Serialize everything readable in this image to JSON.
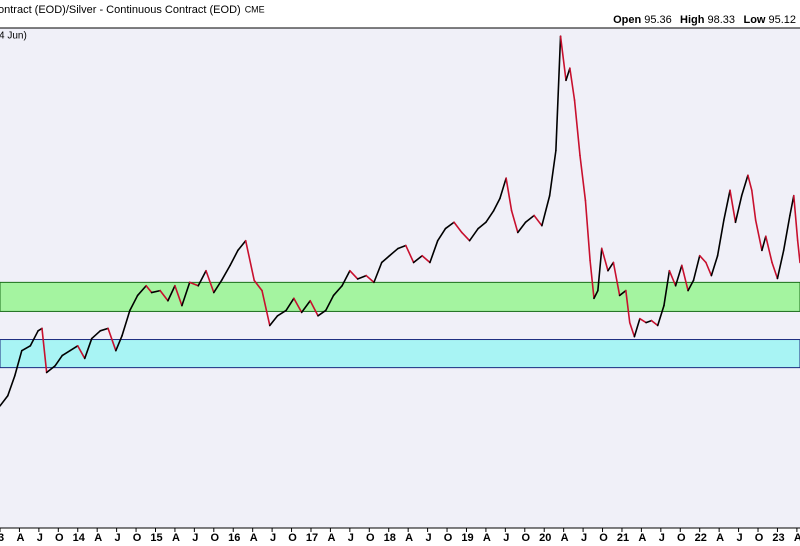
{
  "chart_data": {
    "type": "line",
    "title": "ontract (EOD)/Silver - Continuous Contract (EOD)",
    "source": "CME",
    "annotation": "4 Jun)",
    "quote": [
      {
        "label": "Open",
        "value": 95.36
      },
      {
        "label": "High",
        "value": 98.33
      },
      {
        "label": "Low",
        "value": 95.12
      }
    ],
    "up_color": "#000000",
    "down_color": "#c8102e",
    "xlim": [
      2013.0,
      2023.29
    ],
    "ylim": [
      23.5,
      126.7
    ],
    "xticks": [
      {
        "value": 2013,
        "label": "3"
      },
      {
        "value": 2013.25,
        "label": "A"
      },
      {
        "value": 2013.5,
        "label": "J"
      },
      {
        "value": 2013.75,
        "label": "O"
      },
      {
        "value": 2014,
        "label": "14"
      },
      {
        "value": 2014.25,
        "label": "A"
      },
      {
        "value": 2014.5,
        "label": "J"
      },
      {
        "value": 2014.75,
        "label": "O"
      },
      {
        "value": 2015,
        "label": "15"
      },
      {
        "value": 2015.25,
        "label": "A"
      },
      {
        "value": 2015.5,
        "label": "J"
      },
      {
        "value": 2015.75,
        "label": "O"
      },
      {
        "value": 2016,
        "label": "16"
      },
      {
        "value": 2016.25,
        "label": "A"
      },
      {
        "value": 2016.5,
        "label": "J"
      },
      {
        "value": 2016.75,
        "label": "O"
      },
      {
        "value": 2017,
        "label": "17"
      },
      {
        "value": 2017.25,
        "label": "A"
      },
      {
        "value": 2017.5,
        "label": "J"
      },
      {
        "value": 2017.75,
        "label": "O"
      },
      {
        "value": 2018,
        "label": "18"
      },
      {
        "value": 2018.25,
        "label": "A"
      },
      {
        "value": 2018.5,
        "label": "J"
      },
      {
        "value": 2018.75,
        "label": "O"
      },
      {
        "value": 2019,
        "label": "19"
      },
      {
        "value": 2019.25,
        "label": "A"
      },
      {
        "value": 2019.5,
        "label": "J"
      },
      {
        "value": 2019.75,
        "label": "O"
      },
      {
        "value": 2020,
        "label": "20"
      },
      {
        "value": 2020.25,
        "label": "A"
      },
      {
        "value": 2020.5,
        "label": "J"
      },
      {
        "value": 2020.75,
        "label": "O"
      },
      {
        "value": 2021,
        "label": "21"
      },
      {
        "value": 2021.25,
        "label": "A"
      },
      {
        "value": 2021.5,
        "label": "J"
      },
      {
        "value": 2021.75,
        "label": "O"
      },
      {
        "value": 2022,
        "label": "22"
      },
      {
        "value": 2022.25,
        "label": "A"
      },
      {
        "value": 2022.5,
        "label": "J"
      },
      {
        "value": 2022.75,
        "label": "O"
      },
      {
        "value": 2023,
        "label": "23"
      },
      {
        "value": 2023.25,
        "label": "A"
      }
    ],
    "bands": [
      {
        "low": 68.2,
        "high": 74.2,
        "color": "#a4f4a0",
        "edge": "#1a6e1a"
      },
      {
        "low": 56.6,
        "high": 62.4,
        "color": "#a8f4f4",
        "edge": "#1a2a7e"
      }
    ],
    "series": [
      {
        "x": [
          2013.0,
          2013.1,
          2013.19,
          2013.28,
          2013.39,
          2013.49,
          2013.54,
          2013.6,
          2013.71,
          2013.8,
          2013.9,
          2014.0,
          2014.09,
          2014.18,
          2014.29,
          2014.39,
          2014.49,
          2014.57,
          2014.67,
          2014.77,
          2014.88,
          2014.95,
          2015.06,
          2015.16,
          2015.25,
          2015.34,
          2015.44,
          2015.55,
          2015.65,
          2015.75,
          2015.85,
          2015.96,
          2016.06,
          2016.16,
          2016.27,
          2016.37,
          2016.47,
          2016.57,
          2016.68,
          2016.78,
          2016.88,
          2016.99,
          2017.09,
          2017.19,
          2017.29,
          2017.4,
          2017.5,
          2017.6,
          2017.71,
          2017.81,
          2017.91,
          2018.01,
          2018.12,
          2018.22,
          2018.32,
          2018.43,
          2018.53,
          2018.63,
          2018.73,
          2018.84,
          2018.94,
          2019.04,
          2019.15,
          2019.25,
          2019.35,
          2019.43,
          2019.51,
          2019.58,
          2019.66,
          2019.76,
          2019.87,
          2019.97,
          2020.07,
          2020.15,
          2020.21,
          2020.28,
          2020.33,
          2020.39,
          2020.46,
          2020.53,
          2020.59,
          2020.64,
          2020.69,
          2020.74,
          2020.82,
          2020.89,
          2020.97,
          2021.05,
          2021.1,
          2021.16,
          2021.23,
          2021.31,
          2021.38,
          2021.46,
          2021.54,
          2021.61,
          2021.69,
          2021.77,
          2021.85,
          2021.92,
          2022.0,
          2022.08,
          2022.15,
          2022.23,
          2022.31,
          2022.39,
          2022.46,
          2022.54,
          2022.62,
          2022.67,
          2022.72,
          2022.8,
          2022.85,
          2022.93,
          2023.0,
          2023.08,
          2023.16,
          2023.21,
          2023.26,
          2023.29
        ],
        "values": [
          48.7,
          50.8,
          54.9,
          60.1,
          61.1,
          64.2,
          64.7,
          55.6,
          57.0,
          59.1,
          60.1,
          61.1,
          58.5,
          62.6,
          64.2,
          64.7,
          60.1,
          63.2,
          68.4,
          71.5,
          73.5,
          72.1,
          72.5,
          70.4,
          73.5,
          69.4,
          74.2,
          73.5,
          76.6,
          72.1,
          74.6,
          77.7,
          80.8,
          82.8,
          74.6,
          72.5,
          65.3,
          67.3,
          68.4,
          70.9,
          68.0,
          70.4,
          67.3,
          68.4,
          71.5,
          73.5,
          76.6,
          74.9,
          75.6,
          74.2,
          78.3,
          79.7,
          81.2,
          81.8,
          78.3,
          79.7,
          78.3,
          82.8,
          85.3,
          86.6,
          84.5,
          82.8,
          85.3,
          86.6,
          89.0,
          91.5,
          95.7,
          89.0,
          84.5,
          86.6,
          88.0,
          85.9,
          92.1,
          101.4,
          125.0,
          115.9,
          118.4,
          111.8,
          100.4,
          91.1,
          78.7,
          70.9,
          72.5,
          81.2,
          76.6,
          78.3,
          71.5,
          72.5,
          65.9,
          63.0,
          66.7,
          65.9,
          66.3,
          65.3,
          69.4,
          76.6,
          73.5,
          77.7,
          72.5,
          74.6,
          79.7,
          78.3,
          75.6,
          79.7,
          87.0,
          93.2,
          86.6,
          92.1,
          96.3,
          93.2,
          87.0,
          80.8,
          83.7,
          78.3,
          75.0,
          80.8,
          88.0,
          92.1,
          82.8,
          78.3
        ]
      }
    ]
  }
}
